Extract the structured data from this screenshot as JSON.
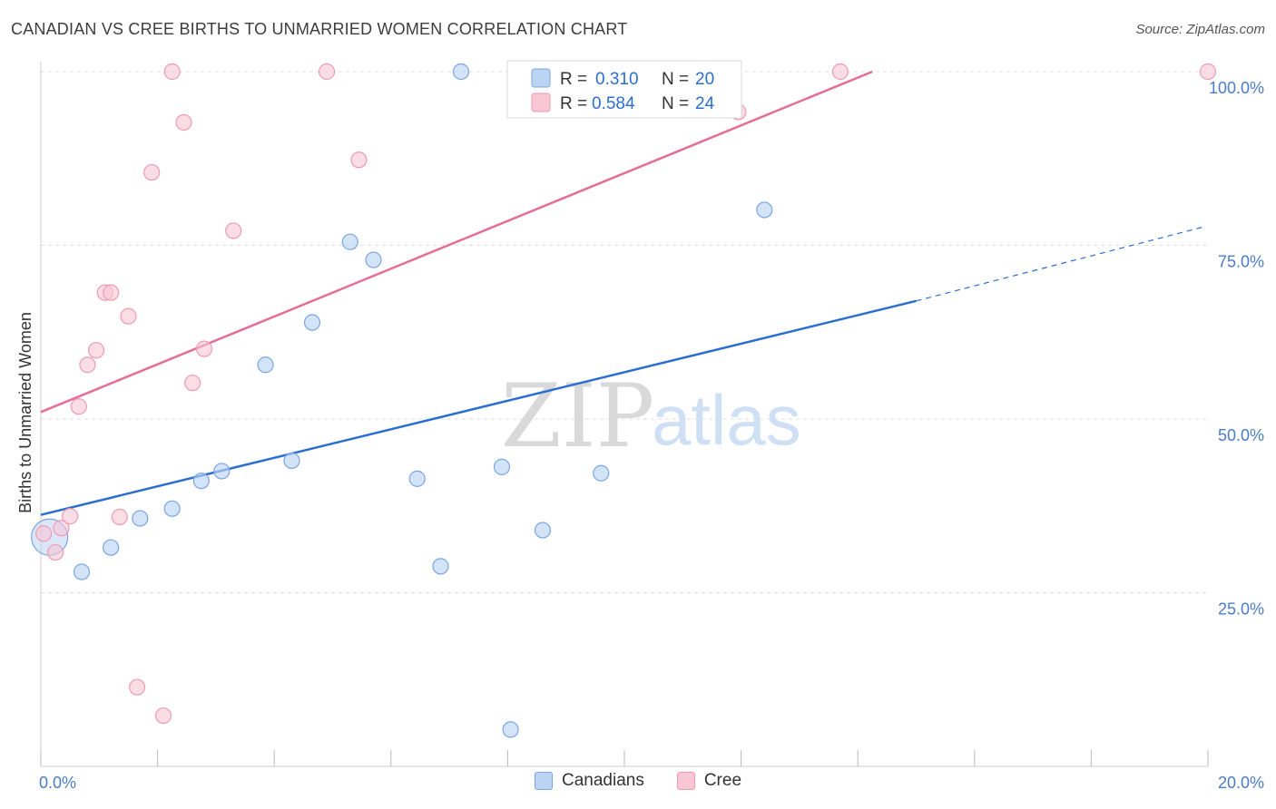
{
  "header": {
    "title": "CANADIAN VS CREE BIRTHS TO UNMARRIED WOMEN CORRELATION CHART",
    "source": "Source: ZipAtlas.com"
  },
  "watermark": {
    "zip": "ZIP",
    "atlas": "atlas"
  },
  "colors": {
    "canadians_fill": "#bcd4f4",
    "canadians_stroke": "#7aa6e2",
    "canadians_line": "#2a6fcf",
    "cree_fill": "#f9c6d5",
    "cree_stroke": "#ef9ab3",
    "cree_line": "#e46e97",
    "grid": "#dedede",
    "axis_text": "#4a7cc9"
  },
  "chart_data": {
    "type": "scatter",
    "title": "CANADIAN VS CREE BIRTHS TO UNMARRIED WOMEN CORRELATION CHART",
    "xlabel": "",
    "ylabel": "Births to Unmarried Women",
    "xlim": [
      0,
      20
    ],
    "ylim": [
      0,
      100
    ],
    "x_tick_labels": [
      "0.0%",
      "20.0%"
    ],
    "y_ticks": [
      25,
      50,
      75,
      100
    ],
    "y_tick_labels": [
      "25.0%",
      "50.0%",
      "75.0%",
      "100.0%"
    ],
    "grid": true,
    "legend_stats": [
      {
        "r_label": "R =",
        "r_value": "0.310",
        "n_label": "N =",
        "n_value": "20"
      },
      {
        "r_label": "R =",
        "r_value": "0.584",
        "n_label": "N =",
        "n_value": "24"
      }
    ],
    "series": [
      {
        "name": "Canadians",
        "points": [
          {
            "x": 0.15,
            "y": 33,
            "big": true
          },
          {
            "x": 0.7,
            "y": 28
          },
          {
            "x": 1.2,
            "y": 31.5
          },
          {
            "x": 1.7,
            "y": 35.7
          },
          {
            "x": 2.25,
            "y": 37.1
          },
          {
            "x": 2.75,
            "y": 41.1
          },
          {
            "x": 3.1,
            "y": 42.5
          },
          {
            "x": 3.85,
            "y": 57.8
          },
          {
            "x": 4.3,
            "y": 44
          },
          {
            "x": 4.65,
            "y": 63.9
          },
          {
            "x": 5.3,
            "y": 75.5
          },
          {
            "x": 5.7,
            "y": 72.9
          },
          {
            "x": 6.45,
            "y": 41.4
          },
          {
            "x": 6.85,
            "y": 28.8
          },
          {
            "x": 7.2,
            "y": 100
          },
          {
            "x": 7.9,
            "y": 43.1
          },
          {
            "x": 8.05,
            "y": 5.3
          },
          {
            "x": 8.6,
            "y": 34
          },
          {
            "x": 9.6,
            "y": 42.2
          },
          {
            "x": 12.4,
            "y": 80.1
          }
        ],
        "trend": {
          "x0": 0,
          "y0": 36.2,
          "x1": 15,
          "y1": 67,
          "dash_to_x": 19.95,
          "dash_to_y": 77.7
        }
      },
      {
        "name": "Cree",
        "points": [
          {
            "x": 0.05,
            "y": 33.5
          },
          {
            "x": 0.25,
            "y": 30.8
          },
          {
            "x": 0.35,
            "y": 34.3
          },
          {
            "x": 0.5,
            "y": 36
          },
          {
            "x": 0.65,
            "y": 51.8
          },
          {
            "x": 0.8,
            "y": 57.8
          },
          {
            "x": 0.95,
            "y": 59.9
          },
          {
            "x": 1.1,
            "y": 68.2
          },
          {
            "x": 1.2,
            "y": 68.2
          },
          {
            "x": 1.5,
            "y": 64.8
          },
          {
            "x": 1.35,
            "y": 35.9
          },
          {
            "x": 1.65,
            "y": 11.4
          },
          {
            "x": 1.9,
            "y": 85.5
          },
          {
            "x": 2.1,
            "y": 7.3
          },
          {
            "x": 2.25,
            "y": 100
          },
          {
            "x": 2.45,
            "y": 92.7
          },
          {
            "x": 2.6,
            "y": 55.2
          },
          {
            "x": 2.8,
            "y": 60.1
          },
          {
            "x": 3.3,
            "y": 77.1
          },
          {
            "x": 4.9,
            "y": 100
          },
          {
            "x": 5.45,
            "y": 87.3
          },
          {
            "x": 11.95,
            "y": 94.2
          },
          {
            "x": 13.7,
            "y": 100
          },
          {
            "x": 20,
            "y": 100
          }
        ],
        "trend": {
          "x0": 0,
          "y0": 51,
          "x1": 14.25,
          "y1": 100
        }
      }
    ]
  },
  "bottom_legend": {
    "canadians": "Canadians",
    "cree": "Cree"
  }
}
